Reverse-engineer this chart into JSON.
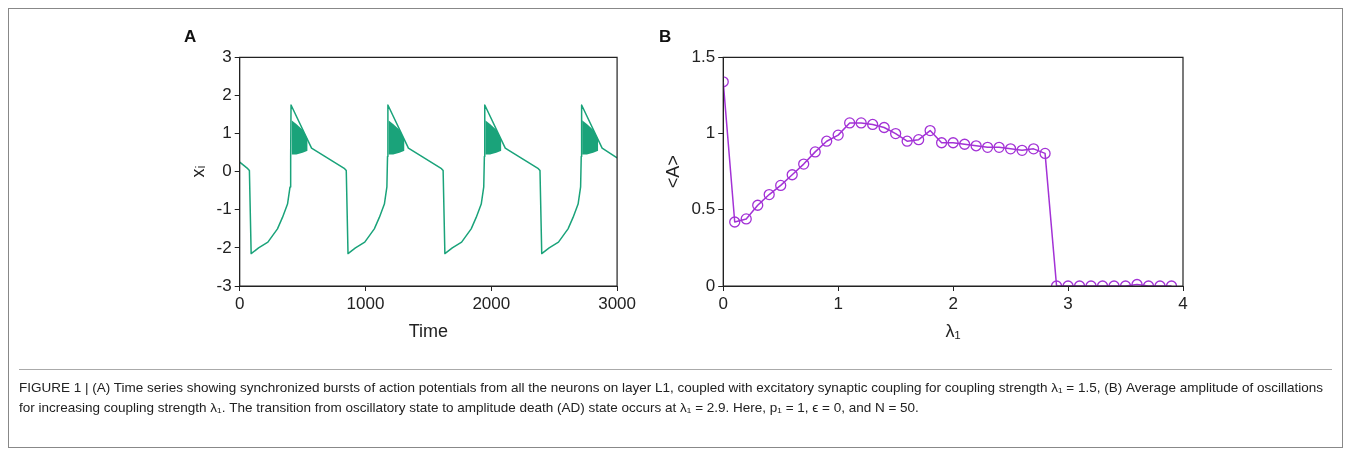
{
  "chart_data": [
    {
      "type": "line",
      "title": "A",
      "xlabel": "Time",
      "ylabel": "xᵢ",
      "marker": "none",
      "xlim": [
        0,
        3000
      ],
      "xticks": [
        0,
        1000,
        2000,
        3000
      ],
      "ylim": [
        -3,
        3
      ],
      "yticks": [
        -3,
        -2,
        -1,
        0,
        1,
        2,
        3
      ],
      "x": [
        0,
        64,
        77,
        91,
        150,
        224,
        300,
        340,
        380,
        400,
        405,
        408,
        412,
        450,
        500,
        540,
        571,
        834,
        847,
        861,
        920,
        994,
        1070,
        1110,
        1150,
        1170,
        1175,
        1178,
        1182,
        1220,
        1270,
        1310,
        1341,
        1604,
        1617,
        1631,
        1690,
        1764,
        1840,
        1880,
        1920,
        1940,
        1945,
        1948,
        1952,
        1990,
        2040,
        2080,
        2111,
        2374,
        2387,
        2401,
        2460,
        2534,
        2610,
        2650,
        2690,
        2710,
        2715,
        2718,
        2722,
        2760,
        2810,
        2850,
        2881,
        3000
      ],
      "series": [
        {
          "color": "#1aa37a",
          "values": [
            0.25,
            0.08,
            0.03,
            -2.15,
            -2.0,
            -1.85,
            -1.5,
            -1.2,
            -0.85,
            -0.4,
            0.4,
            1.75,
            null,
            null,
            null,
            null,
            0.62,
            0.08,
            0.03,
            -2.15,
            -2.0,
            -1.85,
            -1.5,
            -1.2,
            -0.85,
            -0.4,
            0.4,
            1.75,
            null,
            null,
            null,
            null,
            0.62,
            0.08,
            0.03,
            -2.15,
            -2.0,
            -1.85,
            -1.5,
            -1.2,
            -0.85,
            -0.4,
            0.4,
            1.75,
            null,
            null,
            null,
            null,
            0.62,
            0.08,
            0.03,
            -2.15,
            -2.0,
            -1.85,
            -1.5,
            -1.2,
            -0.85,
            -0.4,
            0.4,
            1.75,
            null,
            null,
            null,
            null,
            0.62,
            0.36
          ],
          "lower": [
            null,
            null,
            null,
            null,
            null,
            null,
            null,
            null,
            null,
            null,
            null,
            null,
            0.45,
            0.45,
            0.5,
            0.55,
            null,
            null,
            null,
            null,
            null,
            null,
            null,
            null,
            null,
            null,
            null,
            null,
            0.45,
            0.45,
            0.5,
            0.55,
            null,
            null,
            null,
            null,
            null,
            null,
            null,
            null,
            null,
            null,
            null,
            null,
            0.45,
            0.45,
            0.5,
            0.55,
            null,
            null,
            null,
            null,
            null,
            null,
            null,
            null,
            null,
            null,
            null,
            null,
            0.45,
            0.45,
            0.5,
            0.55,
            null,
            null
          ],
          "upper": [
            null,
            null,
            null,
            null,
            null,
            null,
            null,
            null,
            null,
            null,
            null,
            null,
            1.35,
            1.25,
            1.1,
            0.85,
            null,
            null,
            null,
            null,
            null,
            null,
            null,
            null,
            null,
            null,
            null,
            null,
            1.35,
            1.25,
            1.1,
            0.85,
            null,
            null,
            null,
            null,
            null,
            null,
            null,
            null,
            null,
            null,
            null,
            null,
            1.35,
            1.25,
            1.1,
            0.85,
            null,
            null,
            null,
            null,
            null,
            null,
            null,
            null,
            null,
            null,
            null,
            null,
            1.35,
            1.25,
            1.1,
            0.85,
            null,
            null
          ]
        }
      ]
    },
    {
      "type": "line",
      "title": "B",
      "xlabel": "λ₁",
      "ylabel": "<A>",
      "marker": "circle",
      "xlim": [
        0,
        4
      ],
      "xticks": [
        0,
        1,
        2,
        3,
        4
      ],
      "ylim": [
        0,
        1.5
      ],
      "yticks": [
        0,
        0.5,
        1,
        1.5
      ],
      "x": [
        0,
        0.1,
        0.2,
        0.3,
        0.4,
        0.5,
        0.6,
        0.7,
        0.8,
        0.9,
        1.0,
        1.1,
        1.2,
        1.3,
        1.4,
        1.5,
        1.6,
        1.7,
        1.8,
        1.9,
        2.0,
        2.1,
        2.2,
        2.3,
        2.4,
        2.5,
        2.6,
        2.7,
        2.8,
        2.9,
        3.0,
        3.1,
        3.2,
        3.3,
        3.4,
        3.5,
        3.6,
        3.7,
        3.8,
        3.9
      ],
      "series": [
        {
          "color": "#a332d6",
          "values": [
            1.34,
            0.42,
            0.44,
            0.53,
            0.6,
            0.66,
            0.73,
            0.8,
            0.88,
            0.95,
            0.99,
            1.07,
            1.07,
            1.06,
            1.04,
            1.0,
            0.95,
            0.96,
            1.02,
            0.94,
            0.94,
            0.93,
            0.92,
            0.91,
            0.91,
            0.9,
            0.89,
            0.9,
            0.87,
            0,
            0,
            0,
            0,
            0,
            0,
            0,
            0.01,
            0,
            0,
            0
          ]
        }
      ],
      "annotations": [
        "FIGURE 1 | (A) Time series showing synchronized bursts of action potentials from all the neurons on layer L1, coupled with excitatory synaptic coupling for coupling strength λ₁ = 1.5, (B) Average amplitude of oscillations for increasing coupling strength λ₁. The transition from oscillatory state to amplitude death (AD) state occurs at λ₁ = 2.9. Here, p₁ = 1, ϵ = 0, and N = 50."
      ]
    }
  ]
}
